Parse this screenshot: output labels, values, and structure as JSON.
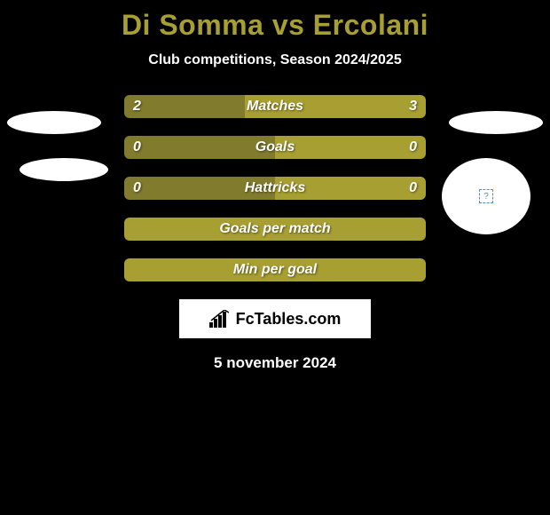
{
  "title": "Di Somma vs Ercolani",
  "subtitle": "Club competitions, Season 2024/2025",
  "date": "5 november 2024",
  "brand": "FcTables.com",
  "colors": {
    "bg": "#000000",
    "accent": "#a89f32",
    "bar_left": "#817b2d",
    "bar_right": "#a89f32",
    "bar_full": "#a89f32",
    "text": "#ffffff",
    "ellipse": "#ffffff"
  },
  "bars": [
    {
      "label": "Matches",
      "left": "2",
      "right": "3",
      "left_pct": 40,
      "right_pct": 60,
      "show_vals": true
    },
    {
      "label": "Goals",
      "left": "0",
      "right": "0",
      "left_pct": 50,
      "right_pct": 50,
      "show_vals": true
    },
    {
      "label": "Hattricks",
      "left": "0",
      "right": "0",
      "left_pct": 50,
      "right_pct": 50,
      "show_vals": true
    },
    {
      "label": "Goals per match",
      "left": "",
      "right": "",
      "left_pct": 100,
      "right_pct": 0,
      "show_vals": false
    },
    {
      "label": "Min per goal",
      "left": "",
      "right": "",
      "left_pct": 100,
      "right_pct": 0,
      "show_vals": false
    }
  ],
  "typography": {
    "title_fontsize": 32,
    "subtitle_fontsize": 16,
    "bar_label_fontsize": 16,
    "date_fontsize": 17
  }
}
